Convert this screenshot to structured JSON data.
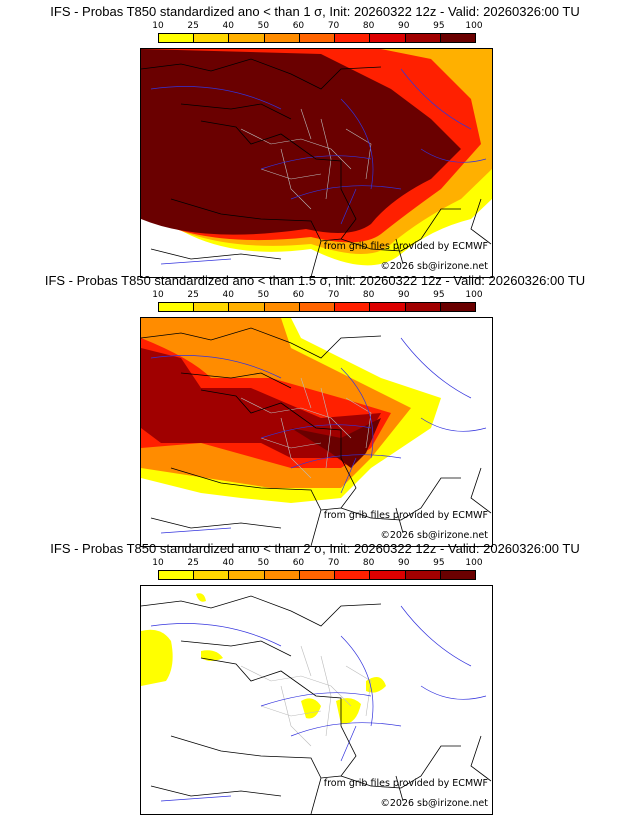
{
  "colorbar": {
    "ticks": [
      "10",
      "25",
      "40",
      "50",
      "60",
      "70",
      "80",
      "90",
      "95",
      "100"
    ],
    "colors": [
      "#ffff00",
      "#ffd700",
      "#ffb000",
      "#ff8c00",
      "#ff6400",
      "#ff2000",
      "#dc0000",
      "#a00000",
      "#6a0000"
    ]
  },
  "panels": [
    {
      "title": "IFS - Probas T850  standardized ano < than 1 σ, Init: 20260322 12z - Valid: 20260326:00 TU",
      "source": "from grib files provided by ECMWF",
      "copyright": "©2026 sb@irizone.net"
    },
    {
      "title": "IFS - Probas T850  standardized ano < than 1.5 σ, Init: 20260322 12z - Valid: 20260326:00 TU",
      "source": "from grib files provided by ECMWF",
      "copyright": "©2026 sb@irizone.net"
    },
    {
      "title": "IFS - Probas T850  standardized ano < than 2 σ, Init: 20260322 12z - Valid: 20260326:00 TU",
      "source": "from grib files provided by ECMWF",
      "copyright": "©2026 sb@irizone.net"
    }
  ]
}
